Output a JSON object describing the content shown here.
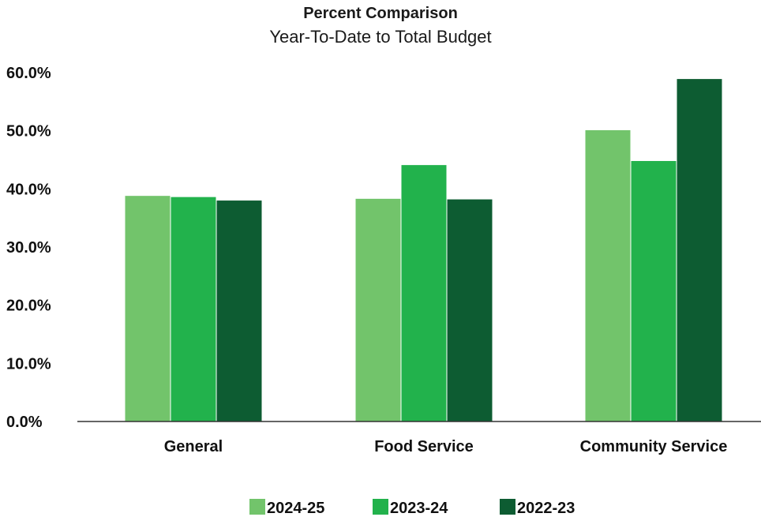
{
  "chart_data": {
    "type": "bar",
    "title": "Percent Comparison",
    "subtitle": "Year-To-Date to Total Budget",
    "xlabel": "",
    "ylabel": "",
    "categories": [
      "General",
      "Food Service",
      "Community Service"
    ],
    "series": [
      {
        "name": "2024-25",
        "values": [
          38.8,
          38.3,
          50.1
        ],
        "color": "#72c46b"
      },
      {
        "name": "2023-24",
        "values": [
          38.6,
          44.1,
          44.8
        ],
        "color": "#22b24c"
      },
      {
        "name": "2022-23",
        "values": [
          38.0,
          38.2,
          58.9
        ],
        "color": "#0d5c32"
      }
    ],
    "ylim": [
      0,
      60
    ],
    "yticks": [
      "0.0%",
      "10.0%",
      "20.0%",
      "30.0%",
      "40.0%",
      "50.0%",
      "60.0%"
    ],
    "grid": false,
    "legend_position": "bottom"
  }
}
